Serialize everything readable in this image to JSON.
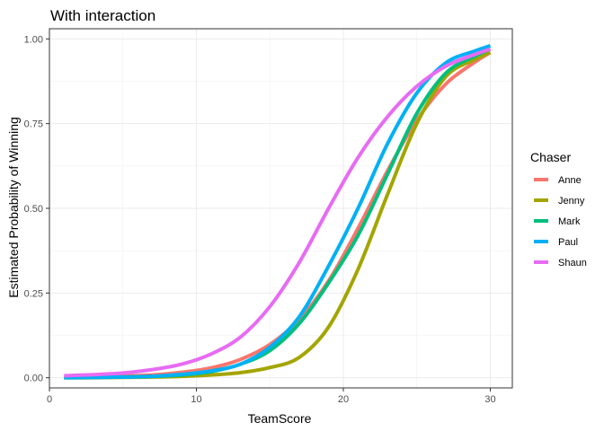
{
  "chart_data": {
    "type": "line",
    "title": "With interaction",
    "xlabel": "TeamScore",
    "ylabel": "Estimated Probability of Winning",
    "xlim": [
      0,
      31.5
    ],
    "ylim": [
      -0.03,
      1.03
    ],
    "xticks": [
      0,
      10,
      20,
      30
    ],
    "xtick_labels": [
      "0",
      "10",
      "20",
      "30"
    ],
    "yticks": [
      0,
      0.25,
      0.5,
      0.75,
      1.0
    ],
    "ytick_labels": [
      "0.00",
      "0.25",
      "0.50",
      "0.75",
      "1.00"
    ],
    "grid": true,
    "legend": {
      "title": "Chaser",
      "placement": "right"
    },
    "x": [
      1,
      3,
      5,
      7,
      9,
      11,
      13,
      15,
      17,
      19,
      21,
      23,
      25,
      27,
      29,
      30
    ],
    "series": [
      {
        "name": "Anne",
        "color": "#F8766D",
        "values": [
          0.001,
          0.003,
          0.005,
          0.008,
          0.016,
          0.029,
          0.054,
          0.098,
          0.172,
          0.286,
          0.441,
          0.61,
          0.76,
          0.868,
          0.933,
          0.96
        ]
      },
      {
        "name": "Jenny",
        "color": "#A3A500",
        "values": [
          0.0,
          0.0,
          0.001,
          0.002,
          0.004,
          0.008,
          0.015,
          0.03,
          0.06,
          0.15,
          0.32,
          0.54,
          0.75,
          0.89,
          0.94,
          0.96
        ]
      },
      {
        "name": "Mark",
        "color": "#00BF7D",
        "values": [
          0.0,
          0.001,
          0.002,
          0.004,
          0.008,
          0.018,
          0.04,
          0.08,
          0.16,
          0.28,
          0.42,
          0.6,
          0.78,
          0.9,
          0.95,
          0.97
        ]
      },
      {
        "name": "Paul",
        "color": "#00B0F6",
        "values": [
          0.0,
          0.001,
          0.002,
          0.004,
          0.01,
          0.02,
          0.04,
          0.09,
          0.18,
          0.33,
          0.5,
          0.69,
          0.84,
          0.93,
          0.965,
          0.98
        ]
      },
      {
        "name": "Shaun",
        "color": "#E76BF3",
        "values": [
          0.006,
          0.009,
          0.014,
          0.024,
          0.04,
          0.07,
          0.12,
          0.21,
          0.34,
          0.5,
          0.65,
          0.77,
          0.86,
          0.92,
          0.955,
          0.97
        ]
      }
    ]
  }
}
